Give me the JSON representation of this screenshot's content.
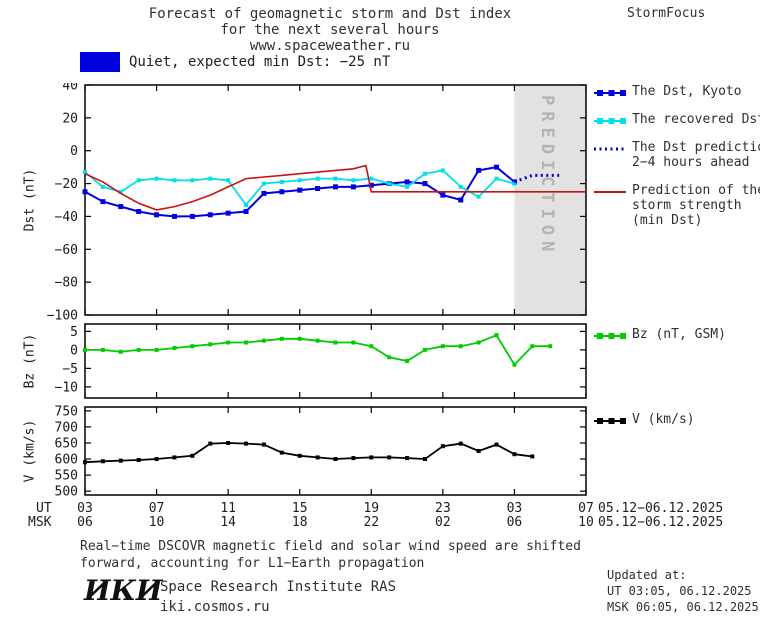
{
  "header": {
    "title_line1": "Forecast of geomagnetic storm and Dst index",
    "title_line2": "for the next several hours",
    "title_line3": "www.spaceweather.ru",
    "brand": "StormFocus"
  },
  "banner": {
    "label": "Quiet, expected min Dst: −25 nT",
    "swatch_color": "#0000dd"
  },
  "legend": {
    "items": [
      {
        "id": "dst-kyoto",
        "color": "#0000dd",
        "style": "solid",
        "marker": true,
        "lines": [
          "The Dst, Kyoto"
        ]
      },
      {
        "id": "recovered-dst",
        "color": "#00e0e8",
        "style": "solid",
        "marker": true,
        "lines": [
          "The recovered Dst"
        ]
      },
      {
        "id": "dst-prediction",
        "color": "#0000dd",
        "style": "dotted",
        "marker": false,
        "lines": [
          "The Dst prediction",
          "2−4 hours ahead"
        ]
      },
      {
        "id": "storm-strength",
        "color": "#cc1111",
        "style": "solid",
        "marker": false,
        "lines": [
          "Prediction of the",
          "storm strength",
          "(min Dst)"
        ]
      },
      {
        "id": "bz",
        "color": "#00cc00",
        "style": "solid",
        "marker": true,
        "lines": [
          "Bz (nT, GSM)"
        ]
      },
      {
        "id": "v",
        "color": "#000000",
        "style": "solid",
        "marker": true,
        "lines": [
          "V (km/s)"
        ]
      }
    ]
  },
  "axis": {
    "ut_label": "UT",
    "msk_label": "MSK",
    "ut_ticks": [
      "03",
      "07",
      "11",
      "15",
      "19",
      "23",
      "03",
      "07"
    ],
    "msk_ticks": [
      "06",
      "10",
      "14",
      "18",
      "22",
      "02",
      "06",
      "10"
    ],
    "ut_date": "05.12−06.12.2025",
    "msk_date": "05.12−06.12.2025"
  },
  "footer": {
    "note_line1": "Real−time DSCOVR magnetic field and solar wind speed are shifted",
    "note_line2": "forward, accounting for L1−Earth propagation",
    "updated_label": "Updated at:",
    "updated_ut": "UT  03:05, 06.12.2025",
    "updated_msk": "MSK 06:05, 06.12.2025",
    "logo": "ИКИ",
    "institute": "Space Research Institute RAS",
    "site": "iki.cosmos.ru"
  },
  "chart_data": [
    {
      "type": "line",
      "title": "",
      "xlabel": "",
      "ylabel": "Dst (nT)",
      "xlim": [
        3,
        31
      ],
      "ylim": [
        -100,
        40
      ],
      "yticks": [
        40,
        20,
        0,
        -20,
        -40,
        -60,
        -80,
        -100
      ],
      "xticks": [
        3,
        7,
        11,
        15,
        19,
        23,
        27,
        31
      ],
      "x_unit": "hour UT (03 UT 05.12 to 07 UT 06.12.2025)",
      "grid": false,
      "legend_position": "right",
      "prediction_band": {
        "x_start": 27,
        "x_end": 31,
        "label": "PREDICTION",
        "color": "#e2e2e2",
        "text_color": "#b4b4b4"
      },
      "series": [
        {
          "id": "dst-kyoto",
          "name": "The Dst, Kyoto",
          "color": "#0000dd",
          "style": "solid",
          "marker": true,
          "marker_size": 5,
          "width": 2,
          "x": [
            3,
            4,
            5,
            6,
            7,
            8,
            9,
            10,
            11,
            12,
            13,
            14,
            15,
            16,
            17,
            18,
            19,
            20,
            21,
            22,
            23,
            24,
            25,
            26,
            27
          ],
          "values": [
            -25,
            -31,
            -34,
            -37,
            -39,
            -40,
            -40,
            -39,
            -38,
            -37,
            -26,
            -25,
            -24,
            -23,
            -22,
            -22,
            -21,
            -20,
            -19,
            -20,
            -27,
            -30,
            -12,
            -10,
            -19
          ]
        },
        {
          "id": "recovered-dst",
          "name": "The recovered Dst",
          "color": "#00e0e8",
          "style": "solid",
          "marker": true,
          "marker_size": 4,
          "width": 1.8,
          "x": [
            3,
            4,
            5,
            6,
            7,
            8,
            9,
            10,
            11,
            12,
            13,
            14,
            15,
            16,
            17,
            18,
            19,
            20,
            21,
            22,
            23,
            24,
            25,
            26,
            27
          ],
          "values": [
            -13,
            -22,
            -25,
            -18,
            -17,
            -18,
            -18,
            -17,
            -18,
            -33,
            -20,
            -19,
            -18,
            -17,
            -17,
            -18,
            -17,
            -20,
            -22,
            -14,
            -12,
            -22,
            -28,
            -17,
            -20
          ]
        },
        {
          "id": "dst-prediction",
          "name": "The Dst prediction 2−4 hours ahead",
          "color": "#0000dd",
          "style": "dotted",
          "marker": false,
          "width": 3,
          "x": [
            27,
            28,
            29,
            29.5
          ],
          "values": [
            -19,
            -15,
            -15,
            -15
          ]
        },
        {
          "id": "storm-strength",
          "name": "Prediction of the storm strength (min Dst)",
          "color": "#cc1111",
          "style": "solid",
          "marker": false,
          "width": 1.6,
          "x": [
            3,
            4,
            5,
            6,
            7,
            8,
            9,
            10,
            11,
            12,
            13,
            14,
            15,
            16,
            17,
            18,
            18.7,
            19,
            31
          ],
          "values": [
            -14,
            -19,
            -26,
            -32,
            -36,
            -34,
            -31,
            -27,
            -22,
            -17,
            -16,
            -15,
            -14,
            -13,
            -12,
            -11,
            -9,
            -25,
            -25
          ]
        }
      ]
    },
    {
      "type": "line",
      "title": "",
      "xlabel": "",
      "ylabel": "Bz (nT)",
      "xlim": [
        3,
        31
      ],
      "ylim": [
        -13,
        7
      ],
      "yticks": [
        5,
        0,
        -5,
        -10
      ],
      "xticks": [
        3,
        7,
        11,
        15,
        19,
        23,
        27,
        31
      ],
      "grid": false,
      "series": [
        {
          "id": "bz",
          "name": "Bz (nT, GSM)",
          "color": "#00cc00",
          "style": "solid",
          "marker": true,
          "marker_size": 4,
          "width": 1.8,
          "x": [
            3,
            4,
            5,
            6,
            7,
            8,
            9,
            10,
            11,
            12,
            13,
            14,
            15,
            16,
            17,
            18,
            19,
            20,
            21,
            22,
            23,
            24,
            25,
            26,
            27,
            28,
            29
          ],
          "values": [
            0,
            0,
            -0.5,
            0,
            0,
            0.5,
            1,
            1.5,
            2,
            2,
            2.5,
            3,
            3,
            2.5,
            2,
            2,
            1,
            -2,
            -3,
            0,
            1,
            1,
            2,
            4,
            -4,
            1,
            1
          ]
        }
      ]
    },
    {
      "type": "line",
      "title": "",
      "xlabel": "",
      "ylabel": "V (km/s)",
      "xlim": [
        3,
        31
      ],
      "ylim": [
        488,
        762
      ],
      "yticks": [
        750,
        700,
        650,
        600,
        550,
        500
      ],
      "xticks": [
        3,
        7,
        11,
        15,
        19,
        23,
        27,
        31
      ],
      "grid": false,
      "series": [
        {
          "id": "v",
          "name": "V (km/s)",
          "color": "#000000",
          "style": "solid",
          "marker": true,
          "marker_size": 4,
          "width": 1.8,
          "x": [
            3,
            4,
            5,
            6,
            7,
            8,
            9,
            10,
            11,
            12,
            13,
            14,
            15,
            16,
            17,
            18,
            19,
            20,
            21,
            22,
            23,
            24,
            25,
            26,
            27,
            28
          ],
          "values": [
            590,
            593,
            595,
            597,
            600,
            605,
            610,
            648,
            650,
            648,
            645,
            620,
            610,
            605,
            600,
            603,
            605,
            605,
            603,
            600,
            640,
            648,
            625,
            645,
            615,
            608
          ]
        }
      ]
    }
  ]
}
